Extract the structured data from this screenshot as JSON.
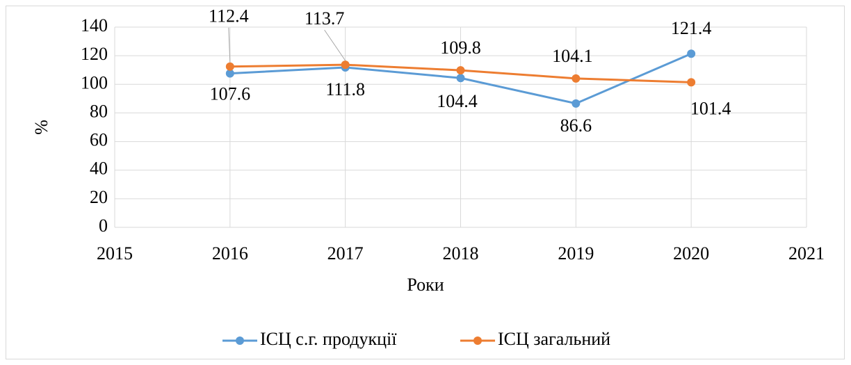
{
  "chart_data": {
    "type": "line",
    "x": [
      2016,
      2017,
      2018,
      2019,
      2020
    ],
    "series": [
      {
        "name": "ІСЦ с.г. продукції",
        "color": "#5b9bd5",
        "values": [
          107.6,
          111.8,
          104.4,
          86.6,
          121.4
        ]
      },
      {
        "name": "ІСЦ загальний",
        "color": "#ed7d31",
        "values": [
          112.4,
          113.7,
          109.8,
          104.1,
          101.4
        ]
      }
    ],
    "xlim": [
      2015,
      2021
    ],
    "xticks": [
      2015,
      2016,
      2017,
      2018,
      2019,
      2020,
      2021
    ],
    "ylim": [
      0,
      140
    ],
    "yticks": [
      0,
      20,
      40,
      60,
      80,
      100,
      120,
      140
    ],
    "xlabel": "Роки",
    "ylabel": "%",
    "grid": true,
    "legend": "bottom"
  }
}
